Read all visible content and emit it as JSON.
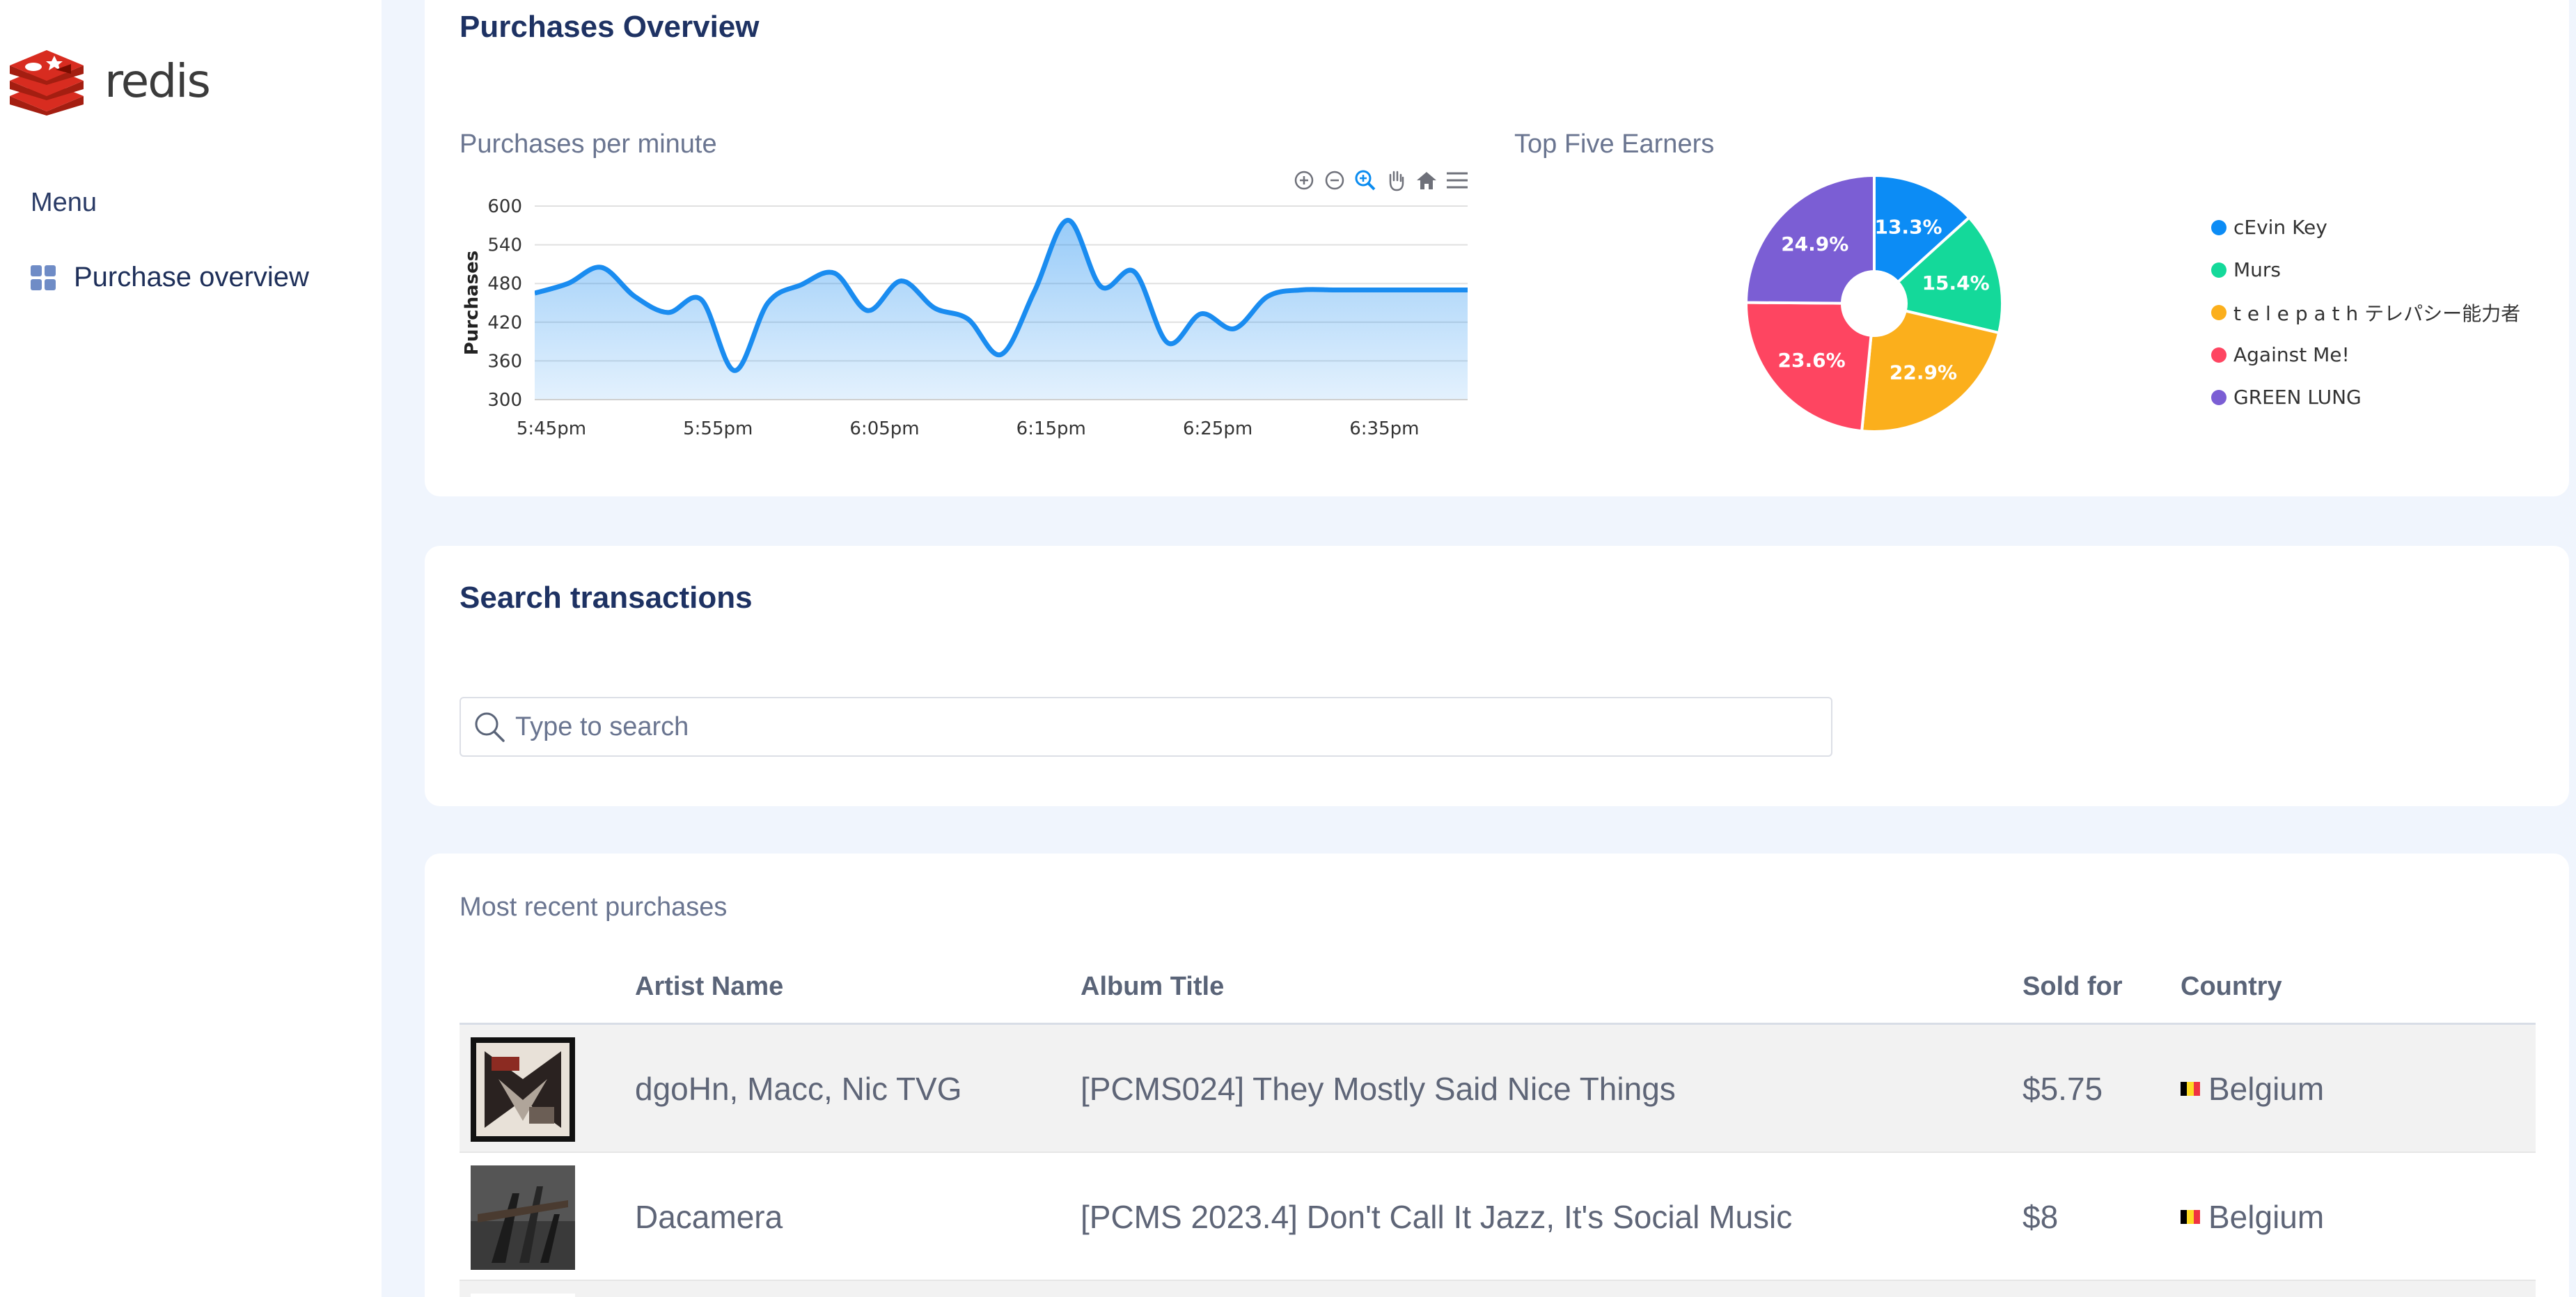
{
  "app": {
    "logo_text": "redis"
  },
  "sidebar": {
    "menu_title": "Menu",
    "items": [
      {
        "label": "Purchase overview",
        "icon": "grid-icon"
      }
    ]
  },
  "overview": {
    "title": "Purchases Overview",
    "line_chart_title": "Purchases per minute",
    "pie_chart_title": "Top Five Earners",
    "toolbar": [
      "zoom-in-icon",
      "zoom-out-icon",
      "zoom-select-icon",
      "pan-hand-icon",
      "home-icon",
      "menu-icon"
    ]
  },
  "chart_data": [
    {
      "type": "area",
      "title": "Purchases per minute",
      "ylabel": "Purchases",
      "xlabel": "",
      "ylim": [
        300,
        600
      ],
      "yticks": [
        "600",
        "540",
        "480",
        "420",
        "360",
        "300"
      ],
      "xticks": [
        "5:45pm",
        "5:55pm",
        "6:05pm",
        "6:15pm",
        "6:25pm",
        "6:35pm"
      ],
      "x_minutes": [
        0,
        2,
        4,
        6,
        8,
        10,
        12,
        14,
        16,
        18,
        20,
        22,
        24,
        26,
        28,
        30,
        32,
        34,
        36,
        38,
        40,
        42,
        44,
        46,
        48,
        50,
        52,
        54,
        56
      ],
      "x_start": "5:44pm",
      "values": [
        465,
        480,
        505,
        460,
        435,
        455,
        345,
        450,
        478,
        496,
        438,
        484,
        442,
        425,
        370,
        468,
        578,
        475,
        498,
        388,
        433,
        410,
        460,
        470,
        470,
        470,
        470,
        470,
        470
      ],
      "color": "#1a8cf0"
    },
    {
      "type": "pie",
      "title": "Top Five Earners",
      "slices": [
        {
          "name": "cEvin Key",
          "value": 13.3,
          "label": "13.3%",
          "color": "#0c8cf5"
        },
        {
          "name": "Murs",
          "value": 15.4,
          "label": "15.4%",
          "color": "#14d99a"
        },
        {
          "name": "t e l e p a t h テレパシー能力者",
          "value": 22.9,
          "label": "22.9%",
          "color": "#fbaf1c"
        },
        {
          "name": "Against Me!",
          "value": 23.6,
          "label": "23.6%",
          "color": "#fe4561"
        },
        {
          "name": "GREEN LUNG",
          "value": 24.9,
          "label": "24.9%",
          "color": "#7b5ed4"
        }
      ],
      "legend_placement": "right"
    }
  ],
  "search": {
    "title": "Search transactions",
    "placeholder": "Type to search",
    "value": ""
  },
  "table": {
    "title": "Most recent purchases",
    "columns": [
      "",
      "Artist Name",
      "Album Title",
      "Sold for",
      "Country"
    ],
    "rows": [
      {
        "artist": "dgoHn, Macc, Nic TVG",
        "album": "[PCMS024] They Mostly Said Nice Things",
        "price": "$5.75",
        "country": "Belgium"
      },
      {
        "artist": "Dacamera",
        "album": "[PCMS 2023.4] Don't Call It Jazz, It's Social Music",
        "price": "$8",
        "country": "Belgium"
      }
    ]
  },
  "colors": {
    "accent": "#1a8cf0",
    "heading": "#1e3263",
    "page_bg": "#f0f5fd"
  }
}
